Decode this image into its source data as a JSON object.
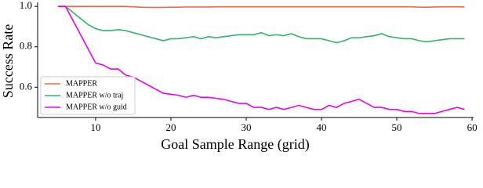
{
  "chart_data": {
    "type": "line",
    "xlabel": "Goal Sample Range (grid)",
    "ylabel": "Success Rate",
    "x": [
      5,
      6,
      7,
      8,
      9,
      10,
      11,
      12,
      13,
      14,
      15,
      16,
      17,
      18,
      19,
      20,
      21,
      22,
      23,
      24,
      25,
      26,
      27,
      28,
      29,
      30,
      31,
      32,
      33,
      34,
      35,
      36,
      37,
      38,
      39,
      40,
      41,
      42,
      43,
      44,
      45,
      46,
      47,
      48,
      49,
      50,
      51,
      52,
      53,
      54,
      55,
      56,
      57,
      58,
      59
    ],
    "series": [
      {
        "name": "MAPPER",
        "color": "#ee6a4d",
        "values": [
          1.0,
          1.0,
          1.0,
          1.0,
          1.0,
          1.0,
          1.0,
          1.0,
          1.0,
          1.0,
          0.998,
          0.996,
          0.995,
          0.995,
          0.995,
          0.996,
          0.996,
          0.997,
          0.997,
          0.997,
          0.997,
          0.998,
          0.998,
          0.998,
          0.998,
          0.998,
          0.998,
          0.998,
          0.998,
          0.998,
          0.998,
          0.998,
          0.998,
          0.998,
          0.998,
          0.998,
          0.998,
          0.998,
          0.998,
          0.998,
          0.998,
          0.998,
          0.998,
          0.998,
          0.998,
          0.998,
          0.998,
          0.998,
          0.996,
          0.996,
          0.997,
          0.998,
          0.998,
          0.998,
          0.997
        ]
      },
      {
        "name": "MAPPER w/o traj",
        "color": "#2fb56a",
        "values": [
          1.0,
          1.0,
          0.97,
          0.94,
          0.91,
          0.89,
          0.88,
          0.88,
          0.885,
          0.88,
          0.87,
          0.86,
          0.85,
          0.84,
          0.83,
          0.84,
          0.84,
          0.845,
          0.85,
          0.84,
          0.85,
          0.845,
          0.85,
          0.855,
          0.86,
          0.86,
          0.86,
          0.87,
          0.855,
          0.86,
          0.855,
          0.865,
          0.85,
          0.84,
          0.84,
          0.84,
          0.83,
          0.82,
          0.83,
          0.845,
          0.845,
          0.85,
          0.855,
          0.865,
          0.85,
          0.845,
          0.84,
          0.84,
          0.83,
          0.825,
          0.83,
          0.835,
          0.84,
          0.84,
          0.84
        ]
      },
      {
        "name": "MAPPER w/o guid",
        "color": "#ee00ee",
        "values": [
          1.0,
          1.0,
          0.93,
          0.86,
          0.79,
          0.72,
          0.71,
          0.69,
          0.69,
          0.66,
          0.65,
          0.63,
          0.61,
          0.59,
          0.57,
          0.565,
          0.56,
          0.55,
          0.56,
          0.55,
          0.55,
          0.545,
          0.54,
          0.53,
          0.52,
          0.52,
          0.5,
          0.5,
          0.49,
          0.5,
          0.49,
          0.5,
          0.51,
          0.5,
          0.49,
          0.49,
          0.51,
          0.5,
          0.52,
          0.53,
          0.54,
          0.52,
          0.5,
          0.5,
          0.49,
          0.49,
          0.48,
          0.48,
          0.47,
          0.47,
          0.47,
          0.48,
          0.49,
          0.5,
          0.49
        ]
      }
    ],
    "xlim": [
      2.3,
      60.2
    ],
    "ylim": [
      0.45,
      1.02
    ],
    "xticks": [
      10,
      20,
      30,
      40,
      50,
      60
    ],
    "yticks": [
      0.6,
      0.8,
      {
        "value": 1,
        "label": "1.0"
      }
    ],
    "legend": "lower left"
  }
}
